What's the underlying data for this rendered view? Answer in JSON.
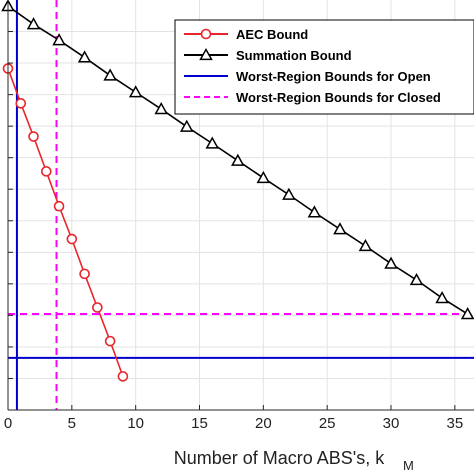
{
  "chart_data": {
    "type": "line",
    "xlabel": "Number of Macro ABS's, k",
    "xlabel_subscript": "M",
    "xlim": [
      0,
      36.5
    ],
    "ylim": [
      0,
      1
    ],
    "x_ticks": [
      {
        "value": 0,
        "label": "0"
      },
      {
        "value": 5,
        "label": "5"
      },
      {
        "value": 10,
        "label": "10"
      },
      {
        "value": 15,
        "label": "15"
      },
      {
        "value": 20,
        "label": "20"
      },
      {
        "value": 25,
        "label": "25"
      },
      {
        "value": 30,
        "label": "30"
      },
      {
        "value": 35,
        "label": "35"
      }
    ],
    "y_gridlines": [
      0.0769,
      0.1538,
      0.2308,
      0.3077,
      0.3846,
      0.4615,
      0.5385,
      0.6154,
      0.6923,
      0.7692,
      0.8462,
      0.9231
    ],
    "x_gridlines": [
      5,
      10,
      15,
      20,
      25,
      30,
      35
    ],
    "grid": true,
    "series": [
      {
        "name": "AEC Bound",
        "color": "#e8262b",
        "marker": "circle",
        "x": [
          0,
          1,
          2,
          3,
          4,
          5,
          6,
          7,
          8,
          9
        ],
        "y": [
          0.833,
          0.748,
          0.667,
          0.582,
          0.497,
          0.417,
          0.332,
          0.25,
          0.168,
          0.082
        ]
      },
      {
        "name": "Summation Bound",
        "color": "#000000",
        "marker": "triangle",
        "x": [
          0,
          2,
          4,
          6,
          8,
          10,
          12,
          14,
          16,
          18,
          20,
          22,
          24,
          26,
          28,
          30,
          32,
          34,
          36
        ],
        "y": [
          0.985,
          0.941,
          0.902,
          0.86,
          0.816,
          0.775,
          0.734,
          0.691,
          0.65,
          0.608,
          0.566,
          0.525,
          0.482,
          0.441,
          0.4,
          0.357,
          0.317,
          0.273,
          0.234
        ]
      }
    ],
    "reference_lines": [
      {
        "name": "Worst-Region Bounds for Open",
        "color": "#0000cc",
        "style": "solid",
        "x": 0.7,
        "y": 0.127
      },
      {
        "name": "Worst-Region Bounds for Closed",
        "color": "#ff00ff",
        "style": "dashed",
        "x": 3.8,
        "y": 0.234
      }
    ],
    "legend": {
      "position": "top-right",
      "entries": [
        {
          "label": "AEC Bound",
          "color": "#e8262b",
          "marker": "circle",
          "style": "solid"
        },
        {
          "label": "Summation Bound",
          "color": "#000000",
          "marker": "triangle",
          "style": "solid"
        },
        {
          "label": "Worst-Region Bounds for Open",
          "color": "#0000cc",
          "marker": "none",
          "style": "solid"
        },
        {
          "label": "Worst-Region Bounds for Closed",
          "color": "#ff00ff",
          "marker": "none",
          "style": "dashed"
        }
      ]
    }
  }
}
